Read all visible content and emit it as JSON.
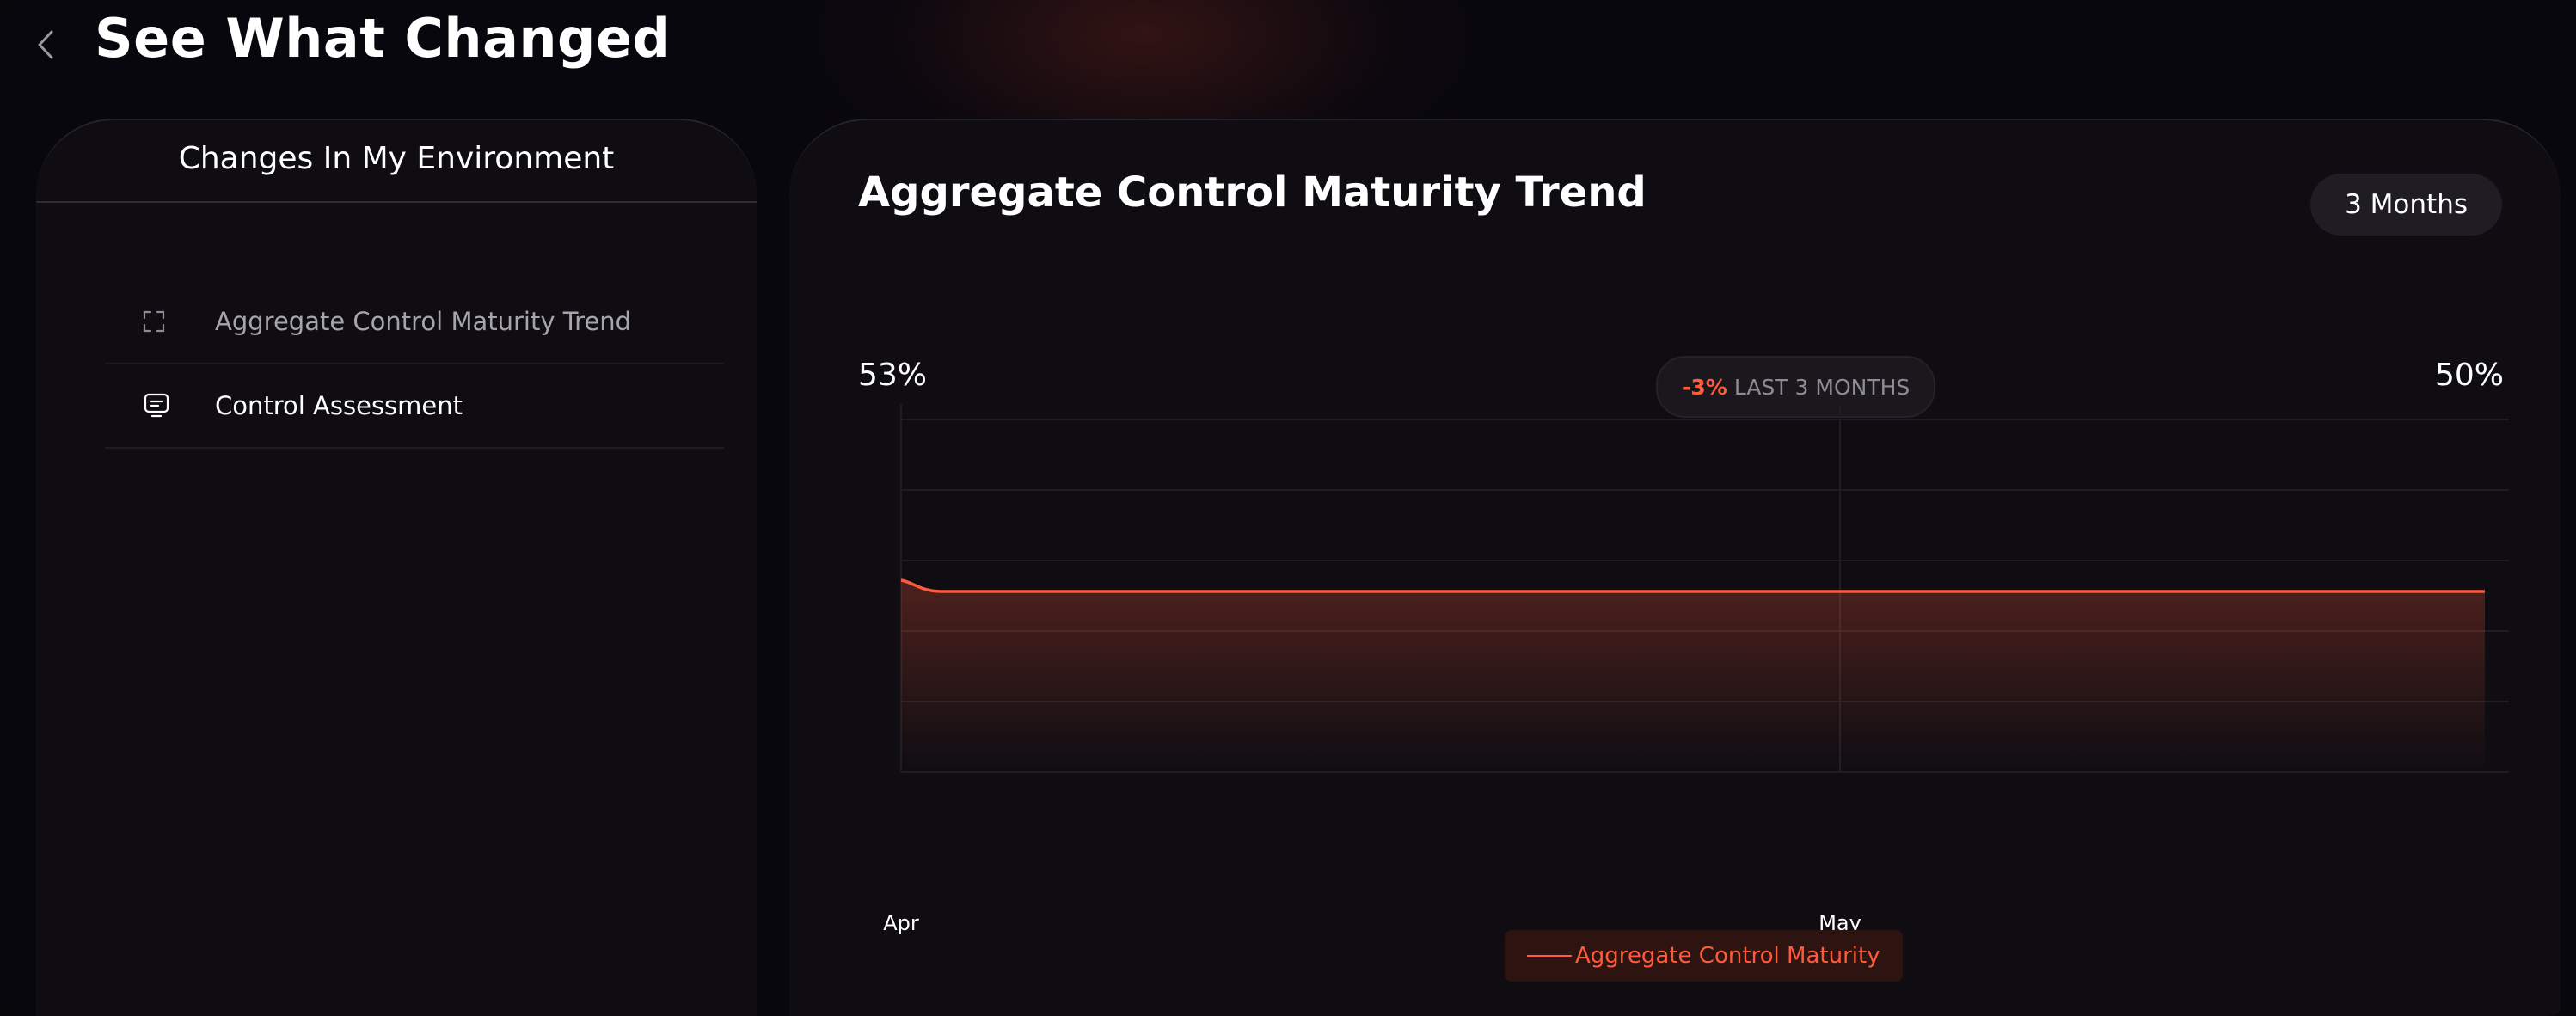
{
  "header": {
    "title": "See What Changed"
  },
  "sidebar": {
    "title": "Changes In My Environment",
    "items": [
      {
        "label": "Aggregate Control Maturity Trend",
        "icon": "expand-icon",
        "state": "muted"
      },
      {
        "label": "Control Assessment",
        "icon": "assessment-icon",
        "state": "active"
      }
    ]
  },
  "main": {
    "title": "Aggregate Control Maturity Trend",
    "range_button": "3 Months",
    "start_value": "53%",
    "end_value": "50%",
    "change": {
      "value": "-3%",
      "label": "LAST 3 MONTHS"
    },
    "legend": "Aggregate Control Maturity"
  },
  "colors": {
    "accent": "#ff5a3c",
    "background": "#07070d",
    "panel": "#0f0d12"
  },
  "chart_data": {
    "type": "area",
    "categories": [
      "Apr",
      "May"
    ],
    "series": [
      {
        "name": "Aggregate Control Maturity",
        "x": [
          "Apr 1",
          "Apr 3",
          "Apr 5",
          "May 30"
        ],
        "values": [
          53,
          50,
          50,
          50
        ]
      }
    ],
    "xlabel": "",
    "ylabel": "",
    "grid": true
  }
}
